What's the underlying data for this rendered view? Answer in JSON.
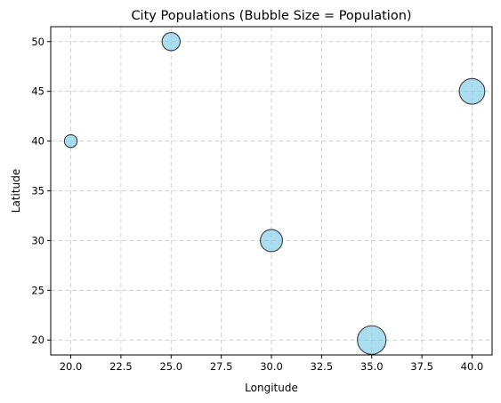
{
  "chart_data": {
    "type": "scatter",
    "title": "City Populations (Bubble Size = Population)",
    "xlabel": "Longitude",
    "ylabel": "Latitude",
    "xlim": [
      19.0,
      41.0
    ],
    "ylim": [
      18.5,
      51.5
    ],
    "xticks": [
      20.0,
      22.5,
      25.0,
      27.5,
      30.0,
      32.5,
      35.0,
      37.5,
      40.0
    ],
    "xtick_labels": [
      "20.0",
      "22.5",
      "25.0",
      "27.5",
      "30.0",
      "32.5",
      "35.0",
      "37.5",
      "40.0"
    ],
    "yticks": [
      20,
      25,
      30,
      35,
      40,
      45,
      50
    ],
    "ytick_labels": [
      "20",
      "25",
      "30",
      "35",
      "40",
      "45",
      "50"
    ],
    "grid": true,
    "points": [
      {
        "x": 20,
        "y": 40,
        "size": 1
      },
      {
        "x": 25,
        "y": 50,
        "size": 2
      },
      {
        "x": 30,
        "y": 30,
        "size": 3
      },
      {
        "x": 40,
        "y": 45,
        "size": 4
      },
      {
        "x": 35,
        "y": 20,
        "size": 5
      }
    ],
    "colors": {
      "bubble_fill": "#87ceeb",
      "bubble_edge": "#000000",
      "grid": "#b0b0b0",
      "axis": "#000000"
    }
  }
}
